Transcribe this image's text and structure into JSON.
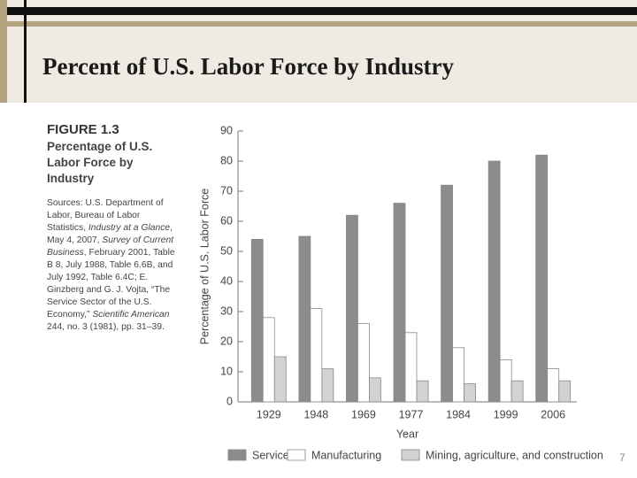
{
  "slide": {
    "title": "Percent of U.S. Labor Force by Industry",
    "page_number": "7"
  },
  "figure": {
    "label": "FIGURE 1.3",
    "caption": "Percentage of U.S. Labor Force by Industry",
    "sources": [
      "Sources: U.S. Department of Labor, Bureau of Labor Statistics, ",
      "Industry at a Glance",
      ", May 4, 2007, ",
      "Survey of Current Business",
      ", February 2001, Table B 8, July 1988, Table 6.6B, and July 1992, Table 6.4C; E. Ginzberg and G. J. Vojta, “The Service Sector of the U.S. Economy,” ",
      "Scientific American",
      " 244, no. 3 (1981), pp. 31–39."
    ]
  },
  "chart_data": {
    "type": "bar",
    "x_label": "Year",
    "y_label": "Percentage of U.S. Labor Force",
    "categories": [
      "1929",
      "1948",
      "1969",
      "1977",
      "1984",
      "1999",
      "2006"
    ],
    "series": [
      {
        "name": "Services",
        "color": "#8c8c8c",
        "values": [
          54,
          55,
          62,
          66,
          72,
          80,
          82
        ]
      },
      {
        "name": "Manufacturing",
        "color": "#ffffff",
        "values": [
          28,
          31,
          26,
          23,
          18,
          14,
          11
        ]
      },
      {
        "name": "Mining, agriculture, and construction",
        "color": "#d2d2d2",
        "values": [
          15,
          11,
          8,
          7,
          6,
          7,
          7
        ]
      }
    ],
    "ylim": [
      0,
      90
    ],
    "yticks": [
      0,
      10,
      20,
      30,
      40,
      50,
      60,
      70,
      80,
      90
    ],
    "legend": "bottom"
  }
}
